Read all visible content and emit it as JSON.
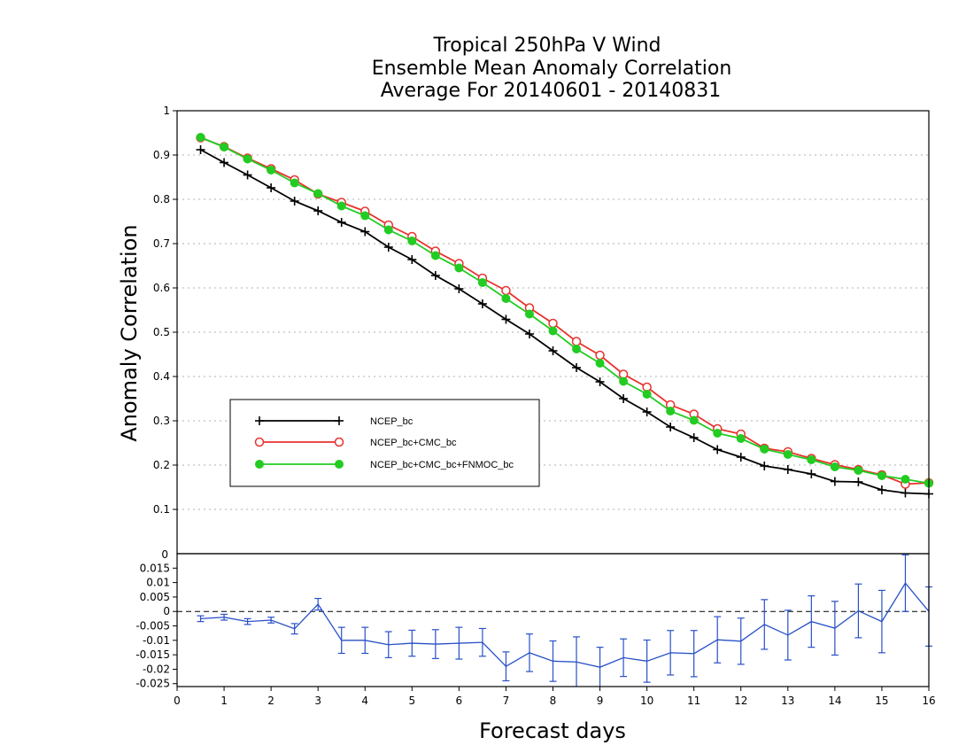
{
  "title": {
    "line1": "Tropical 250hPa V Wind",
    "line2": "Ensemble Mean Anomaly Correlation",
    "line3": "Average For 20140601 - 20140831"
  },
  "colors": {
    "ncep_bc": "#000000",
    "ncep_cmc": "#e8322f",
    "ncep_cmc_fnmoc": "#22cc22",
    "difference": "#2850c8"
  },
  "chart_data": [
    {
      "type": "line",
      "panel": "top",
      "xlabel": "Forecast days",
      "ylabel": "Anomaly Correlation",
      "xlim": [
        0,
        16
      ],
      "ylim": [
        0,
        1
      ],
      "yticks": [
        0,
        0.1,
        0.2,
        0.3,
        0.4,
        0.5,
        0.6,
        0.7,
        0.8,
        0.9,
        1
      ],
      "ytick_labels": [
        "0",
        "0.1",
        "0.2",
        "0.3",
        "0.4",
        "0.5",
        "0.6",
        "0.7",
        "0.8",
        "0.9",
        "1"
      ],
      "grid": true,
      "legend_position": "lower-left",
      "x": [
        0.5,
        1,
        1.5,
        2,
        2.5,
        3,
        3.5,
        4,
        4.5,
        5,
        5.5,
        6,
        6.5,
        7,
        7.5,
        8,
        8.5,
        9,
        9.5,
        10,
        10.5,
        11,
        11.5,
        12,
        12.5,
        13,
        13.5,
        14,
        14.5,
        15,
        15.5,
        16
      ],
      "series": [
        {
          "name": "NCEP_bc",
          "marker": "plus",
          "values": [
            0.912,
            0.883,
            0.855,
            0.826,
            0.796,
            0.774,
            0.748,
            0.727,
            0.692,
            0.664,
            0.628,
            0.598,
            0.564,
            0.529,
            0.496,
            0.458,
            0.42,
            0.388,
            0.35,
            0.32,
            0.286,
            0.262,
            0.235,
            0.218,
            0.198,
            0.19,
            0.18,
            0.163,
            0.162,
            0.144,
            0.137,
            0.135
          ]
        },
        {
          "name": "NCEP_bc+CMC_bc",
          "marker": "open-circle",
          "values": [
            0.939,
            0.919,
            0.893,
            0.869,
            0.844,
            0.812,
            0.793,
            0.773,
            0.742,
            0.716,
            0.683,
            0.655,
            0.622,
            0.594,
            0.555,
            0.52,
            0.479,
            0.448,
            0.405,
            0.376,
            0.336,
            0.315,
            0.282,
            0.27,
            0.238,
            0.23,
            0.215,
            0.201,
            0.19,
            0.178,
            0.157,
            0.16
          ]
        },
        {
          "name": "NCEP_bc+CMC_bc+FNMOC_bc",
          "marker": "filled-circle",
          "values": [
            0.94,
            0.918,
            0.891,
            0.866,
            0.837,
            0.813,
            0.785,
            0.763,
            0.731,
            0.706,
            0.673,
            0.645,
            0.612,
            0.576,
            0.541,
            0.503,
            0.462,
            0.43,
            0.389,
            0.36,
            0.322,
            0.301,
            0.272,
            0.26,
            0.236,
            0.224,
            0.212,
            0.196,
            0.188,
            0.176,
            0.168,
            0.159
          ]
        }
      ]
    },
    {
      "type": "line",
      "panel": "bottom",
      "xlabel": "Forecast days",
      "xlim": [
        0,
        16
      ],
      "xticks": [
        0,
        1,
        2,
        3,
        4,
        5,
        6,
        7,
        8,
        9,
        10,
        11,
        12,
        13,
        14,
        15,
        16
      ],
      "xtick_labels": [
        "0",
        "1",
        "2",
        "3",
        "4",
        "5",
        "6",
        "7",
        "8",
        "9",
        "10",
        "11",
        "12",
        "13",
        "14",
        "15",
        "16"
      ],
      "ylim": [
        -0.026,
        0.02
      ],
      "yticks": [
        -0.025,
        -0.02,
        -0.015,
        -0.01,
        -0.005,
        0,
        0.005,
        0.01,
        0.015
      ],
      "ytick_labels": [
        "-0.025",
        "-0.02",
        "-0.015",
        "-0.01",
        "-0.005",
        "0",
        "0.005",
        "0.01",
        "0.015"
      ],
      "top_label": "0",
      "zero_line": true,
      "x": [
        0.5,
        1,
        1.5,
        2,
        2.5,
        3,
        3.5,
        4,
        4.5,
        5,
        5.5,
        6,
        6.5,
        7,
        7.5,
        8,
        8.5,
        9,
        9.5,
        10,
        10.5,
        11,
        11.5,
        12,
        12.5,
        13,
        13.5,
        14,
        14.5,
        15,
        15.5,
        16
      ],
      "series": [
        {
          "values": [
            -0.0025,
            -0.002,
            -0.0035,
            -0.003,
            -0.006,
            0.0025,
            -0.01,
            -0.01,
            -0.0115,
            -0.011,
            -0.0113,
            -0.011,
            -0.0107,
            -0.019,
            -0.0143,
            -0.0172,
            -0.0175,
            -0.0193,
            -0.016,
            -0.0172,
            -0.0143,
            -0.0146,
            -0.0098,
            -0.0103,
            -0.0045,
            -0.0082,
            -0.0035,
            -0.0058,
            0.0002,
            -0.0035,
            0.0098,
            0.0
          ],
          "error_low": [
            -0.0035,
            -0.003,
            -0.0045,
            -0.004,
            -0.0078,
            0.0005,
            -0.0145,
            -0.0145,
            -0.016,
            -0.0155,
            -0.0163,
            -0.0165,
            -0.0155,
            -0.024,
            -0.0208,
            -0.0242,
            -0.0262,
            -0.0262,
            -0.0225,
            -0.0245,
            -0.022,
            -0.0226,
            -0.0178,
            -0.0183,
            -0.0131,
            -0.0168,
            -0.0124,
            -0.0151,
            -0.0091,
            -0.0143,
            0.0,
            -0.012
          ],
          "error_high": [
            -0.0015,
            -0.001,
            -0.0025,
            -0.002,
            -0.0042,
            0.0045,
            -0.0055,
            -0.0055,
            -0.007,
            -0.0065,
            -0.0063,
            -0.0055,
            -0.0059,
            -0.014,
            -0.0078,
            -0.0102,
            -0.0088,
            -0.0124,
            -0.0095,
            -0.0099,
            -0.0066,
            -0.0066,
            -0.0018,
            -0.0023,
            0.0041,
            0.0004,
            0.0054,
            0.0035,
            0.0095,
            0.0073,
            0.0196,
            0.0085
          ]
        }
      ]
    }
  ]
}
